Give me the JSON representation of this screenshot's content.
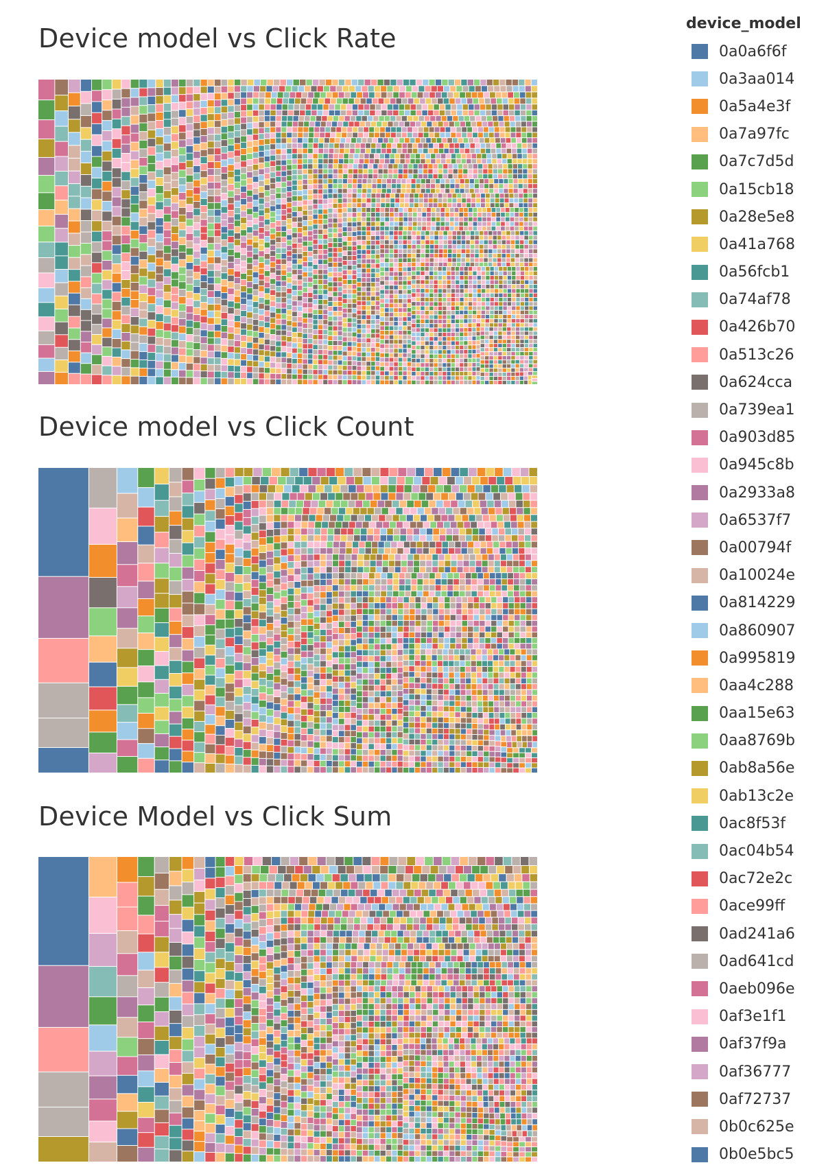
{
  "legend": {
    "title": "device_model",
    "items": [
      {
        "label": "0a0a6f6f",
        "color": "#4e79a7"
      },
      {
        "label": "0a3aa014",
        "color": "#a0cbe8"
      },
      {
        "label": "0a5a4e3f",
        "color": "#f28e2b"
      },
      {
        "label": "0a7a97fc",
        "color": "#ffbe7d"
      },
      {
        "label": "0a7c7d5d",
        "color": "#59a14f"
      },
      {
        "label": "0a15cb18",
        "color": "#8cd17d"
      },
      {
        "label": "0a28e5e8",
        "color": "#b6992d"
      },
      {
        "label": "0a41a768",
        "color": "#f1ce63"
      },
      {
        "label": "0a56fcb1",
        "color": "#499894"
      },
      {
        "label": "0a74af78",
        "color": "#86bcb6"
      },
      {
        "label": "0a426b70",
        "color": "#e15759"
      },
      {
        "label": "0a513c26",
        "color": "#ff9d9a"
      },
      {
        "label": "0a624cca",
        "color": "#79706e"
      },
      {
        "label": "0a739ea1",
        "color": "#bab0ac"
      },
      {
        "label": "0a903d85",
        "color": "#d37295"
      },
      {
        "label": "0a945c8b",
        "color": "#fabfd2"
      },
      {
        "label": "0a2933a8",
        "color": "#b07aa1"
      },
      {
        "label": "0a6537f7",
        "color": "#d4a6c8"
      },
      {
        "label": "0a00794f",
        "color": "#9d7660"
      },
      {
        "label": "0a10024e",
        "color": "#d7b5a6"
      },
      {
        "label": "0a814229",
        "color": "#4e79a7"
      },
      {
        "label": "0a860907",
        "color": "#a0cbe8"
      },
      {
        "label": "0a995819",
        "color": "#f28e2b"
      },
      {
        "label": "0aa4c288",
        "color": "#ffbe7d"
      },
      {
        "label": "0aa15e63",
        "color": "#59a14f"
      },
      {
        "label": "0aa8769b",
        "color": "#8cd17d"
      },
      {
        "label": "0ab8a56e",
        "color": "#b6992d"
      },
      {
        "label": "0ab13c2e",
        "color": "#f1ce63"
      },
      {
        "label": "0ac8f53f",
        "color": "#499894"
      },
      {
        "label": "0ac04b54",
        "color": "#86bcb6"
      },
      {
        "label": "0ac72e2c",
        "color": "#e15759"
      },
      {
        "label": "0ace99ff",
        "color": "#ff9d9a"
      },
      {
        "label": "0ad241a6",
        "color": "#79706e"
      },
      {
        "label": "0ad641cd",
        "color": "#bab0ac"
      },
      {
        "label": "0aeb096e",
        "color": "#d37295"
      },
      {
        "label": "0af3e1f1",
        "color": "#fabfd2"
      },
      {
        "label": "0af37f9a",
        "color": "#b07aa1"
      },
      {
        "label": "0af36777",
        "color": "#d4a6c8"
      },
      {
        "label": "0af72737",
        "color": "#9d7660"
      },
      {
        "label": "0b0c625e",
        "color": "#d7b5a6"
      },
      {
        "label": "0b0e5bc5",
        "color": "#4e79a7"
      }
    ]
  },
  "chart_data": [
    {
      "type": "treemap",
      "title": "Device model vs Click Rate",
      "size_measure": "click rate",
      "color_dimension": "device_model",
      "leaves_estimated": 4500,
      "size_distribution": "near-uniform rectangles, slowly decreasing in size toward the lower-right"
    },
    {
      "type": "treemap",
      "title": "Device model vs Click Count",
      "size_measure": "click count",
      "color_dimension": "device_model",
      "leaves_estimated": 2500,
      "size_distribution": "strongly skewed: a few large rectangles at the left, many tiny ones toward the lower-right",
      "largest_leaves": [
        {
          "color": "#4e79a7"
        },
        {
          "color": "#b07aa1"
        },
        {
          "color": "#ff9d9a"
        },
        {
          "color": "#bab0ac"
        },
        {
          "color": "#bab0ac"
        }
      ]
    },
    {
      "type": "treemap",
      "title": "Device Model vs Click Sum",
      "size_measure": "click sum",
      "color_dimension": "device_model",
      "leaves_estimated": 2500,
      "size_distribution": "strongly skewed: a few large rectangles at the left, many tiny ones toward the lower-right",
      "largest_leaves": [
        {
          "color": "#4e79a7"
        },
        {
          "color": "#b07aa1"
        },
        {
          "color": "#ff9d9a"
        },
        {
          "color": "#bab0ac"
        },
        {
          "color": "#bab0ac"
        }
      ]
    }
  ]
}
